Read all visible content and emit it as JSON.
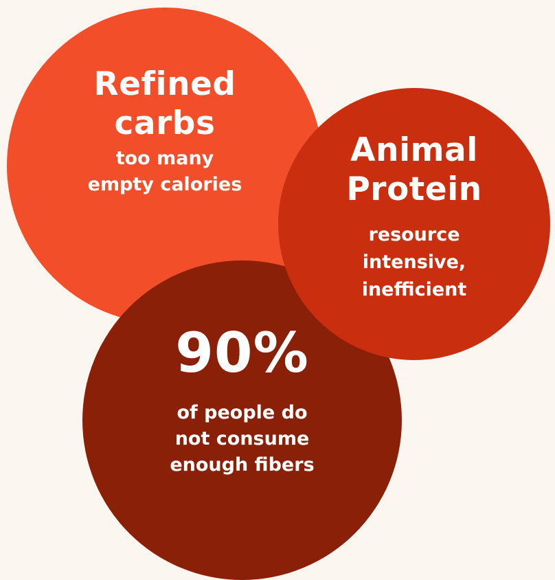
{
  "circles": {
    "refined_carbs": {
      "title": [
        "Refined",
        "carbs"
      ],
      "subtitle": [
        "too many",
        "empty calories"
      ],
      "color": "#f24e2a"
    },
    "animal_protein": {
      "title": [
        "Animal",
        "Protein"
      ],
      "subtitle": [
        "resource",
        "intensive,",
        "inefficient"
      ],
      "color": "#c92e0f"
    },
    "fibers": {
      "stat": "90%",
      "subtitle": [
        "of people do",
        "not consume",
        "enough fibers"
      ],
      "color": "#8a2008"
    }
  },
  "background_color": "#fcf6f0",
  "text_color": "#ffffff"
}
